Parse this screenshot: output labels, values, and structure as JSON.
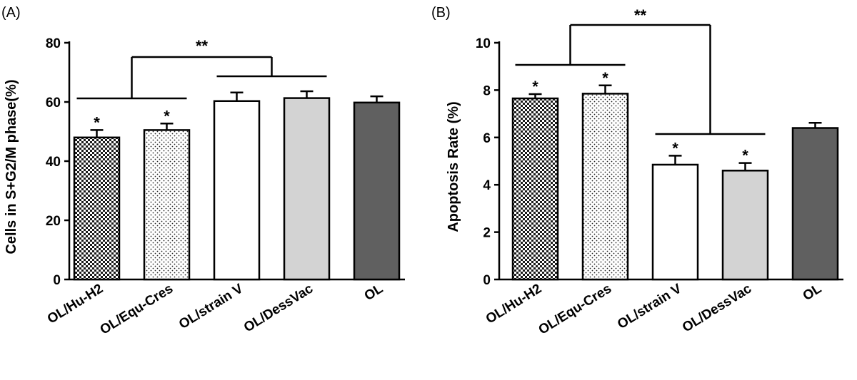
{
  "chart_data": [
    {
      "type": "bar",
      "panel_label": "(A)",
      "ylabel": "Cells in S+G2/M  phase(%)",
      "ylim": [
        0,
        80
      ],
      "yticks": [
        0,
        20,
        40,
        60,
        80
      ],
      "categories": [
        "OL/Hu-H2",
        "OL/Equ-Cres",
        "OL/strain V",
        "OL/DessVac",
        "OL"
      ],
      "values": [
        48,
        50.5,
        60.3,
        61.3,
        59.8
      ],
      "errors": [
        2.5,
        2.2,
        2.9,
        2.3,
        2.1
      ],
      "bar_styles": [
        "checker",
        "dots",
        "white",
        "lightgray",
        "darkgray"
      ],
      "bar_significance": [
        "*",
        "*",
        "",
        "",
        ""
      ],
      "bracket_significance": "**",
      "grid": false,
      "legend": "none"
    },
    {
      "type": "bar",
      "panel_label": "(B)",
      "ylabel": "Apoptosis Rate (%)",
      "ylim": [
        0,
        10
      ],
      "yticks": [
        0,
        2,
        4,
        6,
        8,
        10
      ],
      "categories": [
        "OL/Hu-H2",
        "OL/Equ-Cres",
        "OL/strain V",
        "OL/DessVac",
        "OL"
      ],
      "values": [
        7.65,
        7.85,
        4.85,
        4.6,
        6.4
      ],
      "errors": [
        0.18,
        0.35,
        0.38,
        0.32,
        0.22
      ],
      "bar_styles": [
        "checker",
        "dots",
        "white",
        "lightgray",
        "darkgray"
      ],
      "bar_significance": [
        "*",
        "*",
        "*",
        "*",
        ""
      ],
      "bracket_significance": "**",
      "grid": false,
      "legend": "none"
    }
  ],
  "colors": {
    "axis": "#000000",
    "lightgray": "#d3d3d3",
    "darkgray": "#606060",
    "white": "#ffffff"
  }
}
